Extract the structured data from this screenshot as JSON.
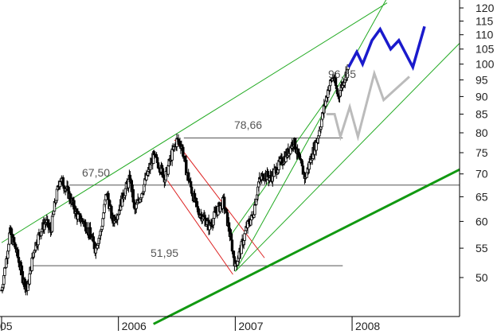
{
  "chart_data": {
    "type": "line",
    "title": "",
    "xlabel": "",
    "ylabel": "",
    "y_axis_position": "right",
    "y_scale": "log",
    "ylim": [
      45,
      120
    ],
    "y_ticks": [
      50,
      55,
      60,
      65,
      70,
      75,
      80,
      85,
      90,
      95,
      100,
      105,
      110,
      115,
      120
    ],
    "x_ticks": [
      {
        "label": "05",
        "t": 2005.0
      },
      {
        "label": "2006",
        "t": 2006.0
      },
      {
        "label": "2007",
        "t": 2007.0
      },
      {
        "label": "2008",
        "t": 2008.0
      }
    ],
    "xlim": [
      2005.0,
      2008.92
    ],
    "colors": {
      "candles": "#000000",
      "channel": "#22aa22",
      "support_trendline": "#119911",
      "downtrend": "#dd2222",
      "horizontal_levels": "#555555",
      "projection_primary": "#1a1acc",
      "projection_secondary": "#bbbbbb"
    },
    "price_annotations": [
      {
        "text": "51,95",
        "value": 51.95
      },
      {
        "text": "67,50",
        "value": 67.5
      },
      {
        "text": "78,66",
        "value": 78.66
      },
      {
        "text": "96,65",
        "value": 96.65
      }
    ],
    "horizontal_levels": [
      {
        "value": 51.95,
        "t1": 2005.27,
        "t2": 2007.92
      },
      {
        "value": 67.5,
        "t1": 2005.58,
        "t2": 2008.92
      },
      {
        "value": 78.66,
        "t1": 2006.56,
        "t2": 2007.92
      }
    ],
    "trendlines": [
      {
        "color": "channel",
        "width": 1,
        "t1": 2005.0,
        "v1": 56,
        "t2": 2008.3,
        "v2": 122
      },
      {
        "color": "channel",
        "width": 1,
        "t1": 2007.0,
        "v1": 51,
        "t2": 2008.3,
        "v2": 124
      },
      {
        "color": "channel",
        "width": 1,
        "t1": 2007.0,
        "v1": 51,
        "t2": 2008.92,
        "v2": 107
      },
      {
        "color": "channel",
        "width": 1,
        "t1": 2006.95,
        "v1": 57,
        "t2": 2007.78,
        "v2": 89
      },
      {
        "color": "support_trendline",
        "width": 3,
        "t1": 2006.3,
        "v1": 43,
        "t2": 2008.92,
        "v2": 71
      },
      {
        "color": "downtrend",
        "width": 1,
        "t1": 2006.48,
        "v1": 78.2,
        "t2": 2007.25,
        "v2": 53.3
      },
      {
        "color": "downtrend",
        "width": 1,
        "t1": 2006.42,
        "v1": 68.5,
        "t2": 2006.98,
        "v2": 50.5
      }
    ],
    "projection_primary": [
      {
        "t": 2007.97,
        "v": 99
      },
      {
        "t": 2008.04,
        "v": 104
      },
      {
        "t": 2008.09,
        "v": 100
      },
      {
        "t": 2008.17,
        "v": 108
      },
      {
        "t": 2008.24,
        "v": 112
      },
      {
        "t": 2008.33,
        "v": 105
      },
      {
        "t": 2008.4,
        "v": 108
      },
      {
        "t": 2008.52,
        "v": 99
      },
      {
        "t": 2008.62,
        "v": 113
      }
    ],
    "projection_secondary": [
      {
        "t": 2007.78,
        "v": 85
      },
      {
        "t": 2007.85,
        "v": 85
      },
      {
        "t": 2007.9,
        "v": 79
      },
      {
        "t": 2007.98,
        "v": 87
      },
      {
        "t": 2008.05,
        "v": 79
      },
      {
        "t": 2008.19,
        "v": 97
      },
      {
        "t": 2008.27,
        "v": 89
      },
      {
        "t": 2008.49,
        "v": 96
      }
    ],
    "price_path": [
      {
        "t": 2005.0,
        "v": 48
      },
      {
        "t": 2005.04,
        "v": 53
      },
      {
        "t": 2005.07,
        "v": 58
      },
      {
        "t": 2005.12,
        "v": 55
      },
      {
        "t": 2005.18,
        "v": 50
      },
      {
        "t": 2005.22,
        "v": 48
      },
      {
        "t": 2005.28,
        "v": 55
      },
      {
        "t": 2005.33,
        "v": 58
      },
      {
        "t": 2005.38,
        "v": 60
      },
      {
        "t": 2005.42,
        "v": 58
      },
      {
        "t": 2005.46,
        "v": 64
      },
      {
        "t": 2005.5,
        "v": 69
      },
      {
        "t": 2005.55,
        "v": 67
      },
      {
        "t": 2005.6,
        "v": 64
      },
      {
        "t": 2005.65,
        "v": 61
      },
      {
        "t": 2005.7,
        "v": 60
      },
      {
        "t": 2005.75,
        "v": 58
      },
      {
        "t": 2005.8,
        "v": 55
      },
      {
        "t": 2005.85,
        "v": 58
      },
      {
        "t": 2005.9,
        "v": 66
      },
      {
        "t": 2005.95,
        "v": 60
      },
      {
        "t": 2006.0,
        "v": 62
      },
      {
        "t": 2006.05,
        "v": 66
      },
      {
        "t": 2006.1,
        "v": 69
      },
      {
        "t": 2006.14,
        "v": 62
      },
      {
        "t": 2006.2,
        "v": 66
      },
      {
        "t": 2006.25,
        "v": 70
      },
      {
        "t": 2006.3,
        "v": 74
      },
      {
        "t": 2006.35,
        "v": 72
      },
      {
        "t": 2006.4,
        "v": 69
      },
      {
        "t": 2006.45,
        "v": 74
      },
      {
        "t": 2006.5,
        "v": 78
      },
      {
        "t": 2006.54,
        "v": 77
      },
      {
        "t": 2006.58,
        "v": 71
      },
      {
        "t": 2006.63,
        "v": 66
      },
      {
        "t": 2006.68,
        "v": 62
      },
      {
        "t": 2006.72,
        "v": 61
      },
      {
        "t": 2006.78,
        "v": 59
      },
      {
        "t": 2006.84,
        "v": 62
      },
      {
        "t": 2006.9,
        "v": 64
      },
      {
        "t": 2006.95,
        "v": 58
      },
      {
        "t": 2007.0,
        "v": 52
      },
      {
        "t": 2007.05,
        "v": 55
      },
      {
        "t": 2007.1,
        "v": 59
      },
      {
        "t": 2007.15,
        "v": 61
      },
      {
        "t": 2007.2,
        "v": 68
      },
      {
        "t": 2007.25,
        "v": 70
      },
      {
        "t": 2007.3,
        "v": 69
      },
      {
        "t": 2007.35,
        "v": 71
      },
      {
        "t": 2007.4,
        "v": 73
      },
      {
        "t": 2007.45,
        "v": 75
      },
      {
        "t": 2007.5,
        "v": 78
      },
      {
        "t": 2007.55,
        "v": 73
      },
      {
        "t": 2007.6,
        "v": 69
      },
      {
        "t": 2007.65,
        "v": 74
      },
      {
        "t": 2007.7,
        "v": 78
      },
      {
        "t": 2007.75,
        "v": 85
      },
      {
        "t": 2007.8,
        "v": 93
      },
      {
        "t": 2007.84,
        "v": 96
      },
      {
        "t": 2007.88,
        "v": 90
      },
      {
        "t": 2007.92,
        "v": 94
      },
      {
        "t": 2007.97,
        "v": 99
      }
    ]
  }
}
